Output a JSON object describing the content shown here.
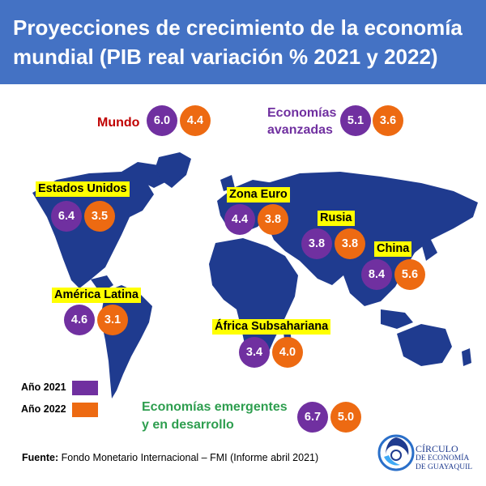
{
  "title": "Proyecciones de crecimiento de la economía mundial (PIB real variación % 2021 y 2022)",
  "colors": {
    "header": "#4472c4",
    "year_2021": "#7030a0",
    "year_2022": "#ed6a12",
    "land": "#1f3b8f",
    "label_highlight": "#ffff00"
  },
  "groups": {
    "mundo": {
      "label": "Mundo",
      "v2021": "6.0",
      "v2022": "4.4"
    },
    "avanzadas": {
      "label_line1": "Economías",
      "label_line2": "avanzadas",
      "v2021": "5.1",
      "v2022": "3.6"
    },
    "emergentes": {
      "label_line1": "Economías emergentes",
      "label_line2": "y en desarrollo",
      "v2021": "6.7",
      "v2022": "5.0"
    }
  },
  "regions": {
    "estados_unidos": {
      "label": "Estados Unidos",
      "v2021": "6.4",
      "v2022": "3.5"
    },
    "zona_euro": {
      "label": "Zona Euro",
      "v2021": "4.4",
      "v2022": "3.8"
    },
    "rusia": {
      "label": "Rusia",
      "v2021": "3.8",
      "v2022": "3.8"
    },
    "china": {
      "label": "China",
      "v2021": "8.4",
      "v2022": "5.6"
    },
    "america_latina": {
      "label": "América Latina",
      "v2021": "4.6",
      "v2022": "3.1"
    },
    "africa": {
      "label": "África Subsahariana",
      "v2021": "3.4",
      "v2022": "4.0"
    }
  },
  "legend": {
    "y2021": "Año 2021",
    "y2022": "Año 2022"
  },
  "source": {
    "label": "Fuente:",
    "text": "Fondo Monetario Internacional – FMI (Informe abril 2021)"
  },
  "logo": {
    "line1": "CÍRCULO",
    "line2": "DE ECONOMÍA",
    "line3": "DE GUAYAQUIL"
  }
}
